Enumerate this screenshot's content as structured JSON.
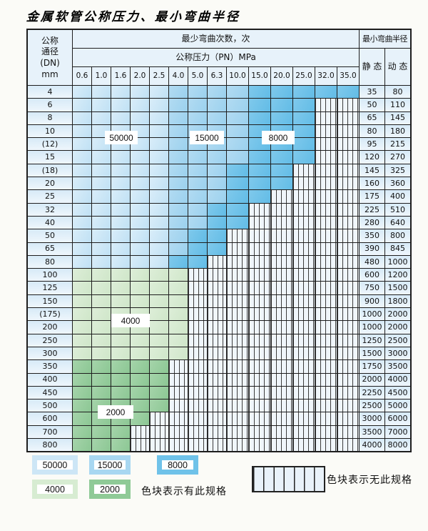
{
  "title": "金属软管公称压力、最小弯曲半径",
  "header": {
    "dn_lines": [
      "公称",
      "通径",
      "(DN)",
      "mm"
    ],
    "bend_times": "最少弯曲次数，次",
    "pressure": "公称压力（PN）MPa",
    "radius": "最小弯曲半径",
    "static": "静 态",
    "dynamic": "动 态",
    "pressures": [
      "0.6",
      "1.0",
      "1.6",
      "2.0",
      "2.5",
      "4.0",
      "5.0",
      "6.3",
      "10.0",
      "15.0",
      "20.0",
      "25.0",
      "32.0",
      "35.0"
    ]
  },
  "zone_meaning": {
    "A": "50000",
    "B": "15000",
    "C": "8000",
    "G": "4000",
    "D": "2000",
    "X": "无此规格"
  },
  "rows": [
    {
      "dn": "4",
      "static": "35",
      "dynamic": "80",
      "cells": "AAAAABBBBCCCCC"
    },
    {
      "dn": "6",
      "static": "50",
      "dynamic": "110",
      "cells": "AAAAABBBBCCCXX"
    },
    {
      "dn": "8",
      "static": "65",
      "dynamic": "145",
      "cells": "AAAAABBBBCCCXX"
    },
    {
      "dn": "10",
      "static": "80",
      "dynamic": "180",
      "cells": "AAAAABBBBCCCXX"
    },
    {
      "dn": "(12)",
      "static": "95",
      "dynamic": "215",
      "cells": "AAAAABBBBCCCXX"
    },
    {
      "dn": "15",
      "static": "120",
      "dynamic": "270",
      "cells": "AAAAABBBBCCCXX"
    },
    {
      "dn": "(18)",
      "static": "145",
      "dynamic": "325",
      "cells": "AAAAABBBCCCXXX"
    },
    {
      "dn": "20",
      "static": "160",
      "dynamic": "360",
      "cells": "AAAAABBBCCCXXX"
    },
    {
      "dn": "25",
      "static": "175",
      "dynamic": "400",
      "cells": "AAAAABBBCCXXXX"
    },
    {
      "dn": "32",
      "static": "225",
      "dynamic": "510",
      "cells": "AAAAABBCCXXXXX"
    },
    {
      "dn": "40",
      "static": "280",
      "dynamic": "640",
      "cells": "AAAAABBCCXXXXX"
    },
    {
      "dn": "50",
      "static": "350",
      "dynamic": "800",
      "cells": "AAAAABCCXXXXXX"
    },
    {
      "dn": "65",
      "static": "390",
      "dynamic": "845",
      "cells": "AAAAABCCXXXXXX"
    },
    {
      "dn": "80",
      "static": "480",
      "dynamic": "1000",
      "cells": "AAAAACCXXXXXXX"
    },
    {
      "dn": "100",
      "static": "600",
      "dynamic": "1200",
      "cells": "GGGGGGXXXXXXXX"
    },
    {
      "dn": "125",
      "static": "750",
      "dynamic": "1500",
      "cells": "GGGGGGXXXXXXXX"
    },
    {
      "dn": "150",
      "static": "900",
      "dynamic": "1800",
      "cells": "GGGGGGXXXXXXXX"
    },
    {
      "dn": "(175)",
      "static": "1000",
      "dynamic": "2000",
      "cells": "GGGGGGXXXXXXXX"
    },
    {
      "dn": "200",
      "static": "1000",
      "dynamic": "2000",
      "cells": "GGGGGGXXXXXXXX"
    },
    {
      "dn": "250",
      "static": "1250",
      "dynamic": "2500",
      "cells": "GGGGGGXXXXXXXX"
    },
    {
      "dn": "300",
      "static": "1500",
      "dynamic": "3000",
      "cells": "GGGGGGXXXXXXXX"
    },
    {
      "dn": "350",
      "static": "1750",
      "dynamic": "3500",
      "cells": "DDDDDXXXXXXXXX"
    },
    {
      "dn": "400",
      "static": "2000",
      "dynamic": "4000",
      "cells": "DDDDDXXXXXXXXX"
    },
    {
      "dn": "450",
      "static": "2250",
      "dynamic": "4500",
      "cells": "DDDDDXXXXXXXXX"
    },
    {
      "dn": "500",
      "static": "2500",
      "dynamic": "5000",
      "cells": "DDDDDXXXXXXXXX"
    },
    {
      "dn": "600",
      "static": "3000",
      "dynamic": "6000",
      "cells": "DDDDXXXXXXXXXX"
    },
    {
      "dn": "700",
      "static": "3500",
      "dynamic": "7000",
      "cells": "DDDXXXXXXXXXXX"
    },
    {
      "dn": "800",
      "static": "4000",
      "dynamic": "8000",
      "cells": "DDDXXXXXXXXXXX"
    }
  ],
  "overlays": [
    {
      "text": "50000"
    },
    {
      "text": "15000"
    },
    {
      "text": "8000"
    },
    {
      "text": "4000"
    },
    {
      "text": "2000"
    }
  ],
  "legend": {
    "items": [
      {
        "label": "50000"
      },
      {
        "label": "15000"
      },
      {
        "label": "8000"
      },
      {
        "label": "4000"
      },
      {
        "label": "2000"
      }
    ],
    "has_spec_text": "色块表示有此规格",
    "no_spec_text": "色块表示无此规格"
  },
  "colors": {
    "zone_50000": "#cde6f6",
    "zone_15000": "#a8d7f1",
    "zone_8000": "#6fc2e9",
    "zone_4000": "#d7ecd2",
    "zone_2000": "#8fca97",
    "hatch_bg": "#f0f6fb",
    "header_bg": "#e7f2fa",
    "border": "#1e1e1e"
  }
}
